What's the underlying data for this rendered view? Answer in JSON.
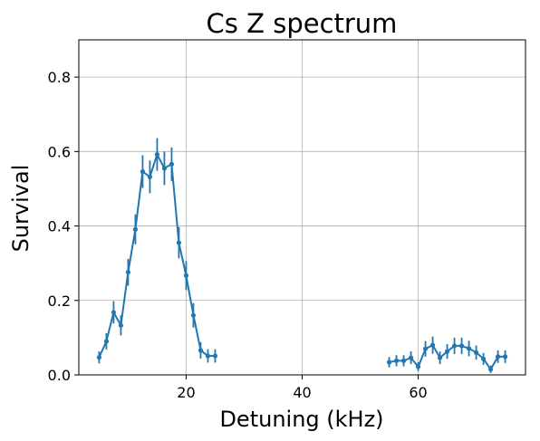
{
  "chart_data": {
    "type": "line",
    "title": "Cs Z spectrum",
    "xlabel": "Detuning (kHz)",
    "ylabel": "Survival",
    "xlim": [
      1.5,
      78.5
    ],
    "ylim": [
      0,
      0.9
    ],
    "xticks": [
      20,
      40,
      60
    ],
    "xtick_labels": [
      "20",
      "40",
      "60"
    ],
    "yticks": [
      0.0,
      0.2,
      0.4,
      0.6,
      0.8
    ],
    "ytick_labels": [
      "0.0",
      "0.2",
      "0.4",
      "0.6",
      "0.8"
    ],
    "grid": true,
    "colors": {
      "series": "#1f77b4",
      "grid": "#b0b0b0"
    },
    "series": [
      {
        "marker": "dot",
        "error_bars": true,
        "segments": [
          {
            "x": [
              5.0,
              6.25,
              7.5,
              8.75,
              10.0,
              11.25,
              12.5,
              13.75,
              15.0,
              16.25,
              17.5,
              18.75,
              20.0,
              21.25,
              22.5,
              23.75,
              25.0
            ],
            "y": [
              0.047,
              0.09,
              0.168,
              0.133,
              0.276,
              0.391,
              0.546,
              0.532,
              0.592,
              0.555,
              0.566,
              0.355,
              0.267,
              0.16,
              0.066,
              0.051,
              0.051
            ],
            "err": [
              0.016,
              0.022,
              0.03,
              0.027,
              0.036,
              0.04,
              0.044,
              0.044,
              0.044,
              0.045,
              0.045,
              0.042,
              0.039,
              0.033,
              0.022,
              0.018,
              0.018
            ]
          },
          {
            "x": [
              55.0,
              56.25,
              57.5,
              58.75,
              60.0,
              61.25,
              62.5,
              63.75,
              65.0,
              66.25,
              67.5,
              68.75,
              70.0,
              71.25,
              72.5,
              73.75,
              75.0
            ],
            "y": [
              0.034,
              0.038,
              0.038,
              0.046,
              0.022,
              0.07,
              0.08,
              0.046,
              0.063,
              0.078,
              0.078,
              0.071,
              0.06,
              0.043,
              0.015,
              0.049,
              0.049
            ],
            "err": [
              0.014,
              0.015,
              0.015,
              0.017,
              0.012,
              0.021,
              0.023,
              0.017,
              0.02,
              0.022,
              0.022,
              0.021,
              0.019,
              0.016,
              0.01,
              0.017,
              0.017
            ]
          }
        ]
      }
    ]
  }
}
